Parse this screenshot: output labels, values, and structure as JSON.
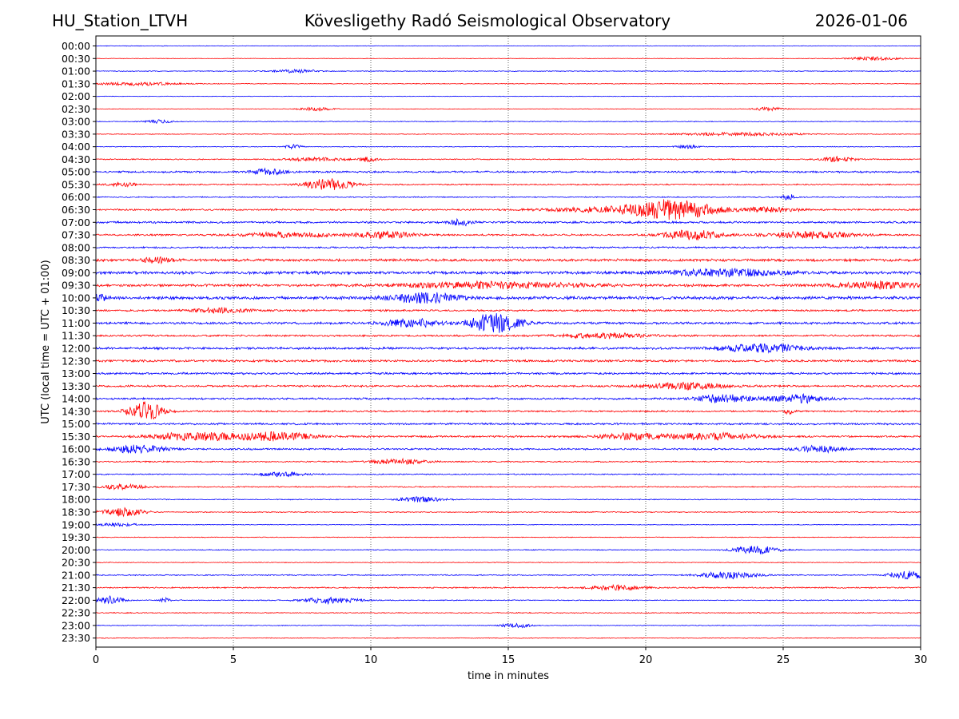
{
  "header": {
    "station": "HU_Station_LTVH",
    "title": "Kövesligethy Radó Seismological Observatory",
    "date": "2026-01-06"
  },
  "chart_data": {
    "type": "line",
    "title": "Kövesligethy Radó Seismological Observatory",
    "xlabel": "time in minutes",
    "ylabel": "UTC (local time = UTC + 01:00)",
    "xlim": [
      0,
      30
    ],
    "xticks": [
      0,
      5,
      10,
      15,
      20,
      25,
      30
    ],
    "grid": "vertical dotted lines at 5-minute ticks",
    "colors": [
      "#0000ff",
      "#ff0000"
    ],
    "rows": [
      "00:00",
      "00:30",
      "01:00",
      "01:30",
      "02:00",
      "02:30",
      "03:00",
      "03:30",
      "04:00",
      "04:30",
      "05:00",
      "05:30",
      "06:00",
      "06:30",
      "07:00",
      "07:30",
      "08:00",
      "08:30",
      "09:00",
      "09:30",
      "10:00",
      "10:30",
      "11:00",
      "11:30",
      "12:00",
      "12:30",
      "13:00",
      "13:30",
      "14:00",
      "14:30",
      "15:00",
      "15:30",
      "16:00",
      "16:30",
      "17:00",
      "17:30",
      "18:00",
      "18:30",
      "19:00",
      "19:30",
      "20:00",
      "20:30",
      "21:00",
      "21:30",
      "22:00",
      "22:30",
      "23:00",
      "23:30"
    ],
    "noise": [
      0.3,
      0.3,
      0.4,
      0.4,
      0.3,
      0.3,
      0.4,
      0.4,
      0.4,
      0.6,
      1.0,
      0.7,
      0.6,
      0.9,
      1.1,
      1.0,
      0.9,
      1.4,
      1.6,
      1.4,
      1.6,
      1.0,
      1.2,
      1.0,
      1.2,
      1.2,
      1.1,
      1.0,
      1.0,
      0.9,
      1.0,
      1.0,
      0.9,
      0.7,
      0.6,
      0.6,
      0.5,
      0.5,
      0.4,
      0.4,
      0.5,
      0.4,
      0.6,
      0.7,
      0.5,
      0.5,
      0.4,
      0.4
    ],
    "events": [
      {
        "row": 1,
        "t": 28.3,
        "a": 2,
        "d": 1.0
      },
      {
        "row": 2,
        "t": 7.3,
        "a": 2,
        "d": 0.8
      },
      {
        "row": 3,
        "t": 1.5,
        "a": 2,
        "d": 1.5
      },
      {
        "row": 5,
        "t": 8.0,
        "a": 2,
        "d": 0.6
      },
      {
        "row": 5,
        "t": 24.5,
        "a": 2,
        "d": 0.6
      },
      {
        "row": 6,
        "t": 2.3,
        "a": 2,
        "d": 0.5
      },
      {
        "row": 7,
        "t": 23.5,
        "a": 2,
        "d": 2.0
      },
      {
        "row": 8,
        "t": 7.2,
        "a": 3,
        "d": 0.3
      },
      {
        "row": 8,
        "t": 21.5,
        "a": 2,
        "d": 0.4
      },
      {
        "row": 9,
        "t": 8.0,
        "a": 2,
        "d": 1.0
      },
      {
        "row": 9,
        "t": 9.9,
        "a": 3,
        "d": 0.3
      },
      {
        "row": 9,
        "t": 27.0,
        "a": 3,
        "d": 0.6
      },
      {
        "row": 10,
        "t": 6.3,
        "a": 4,
        "d": 0.6
      },
      {
        "row": 11,
        "t": 8.5,
        "a": 8,
        "d": 0.8
      },
      {
        "row": 11,
        "t": 1.0,
        "a": 2,
        "d": 0.6
      },
      {
        "row": 12,
        "t": 25.2,
        "a": 4,
        "d": 0.2
      },
      {
        "row": 13,
        "t": 21.0,
        "a": 11,
        "d": 1.5
      },
      {
        "row": 13,
        "t": 19.0,
        "a": 3,
        "d": 2.5
      },
      {
        "row": 13,
        "t": 24.5,
        "a": 3,
        "d": 1.0
      },
      {
        "row": 14,
        "t": 13.3,
        "a": 4,
        "d": 0.4
      },
      {
        "row": 15,
        "t": 10.5,
        "a": 4,
        "d": 1.0
      },
      {
        "row": 15,
        "t": 21.7,
        "a": 6,
        "d": 1.0
      },
      {
        "row": 15,
        "t": 26.0,
        "a": 4,
        "d": 1.5
      },
      {
        "row": 15,
        "t": 7.0,
        "a": 3,
        "d": 1.5
      },
      {
        "row": 17,
        "t": 2.2,
        "a": 3,
        "d": 0.6
      },
      {
        "row": 18,
        "t": 23.0,
        "a": 4,
        "d": 2.0
      },
      {
        "row": 19,
        "t": 14.5,
        "a": 4,
        "d": 3.0
      },
      {
        "row": 19,
        "t": 28.5,
        "a": 4,
        "d": 1.5
      },
      {
        "row": 20,
        "t": 12.0,
        "a": 6,
        "d": 1.2
      },
      {
        "row": 20,
        "t": 0.1,
        "a": 4,
        "d": 0.3
      },
      {
        "row": 21,
        "t": 4.5,
        "a": 3,
        "d": 1.0
      },
      {
        "row": 22,
        "t": 14.5,
        "a": 12,
        "d": 0.9
      },
      {
        "row": 22,
        "t": 11.5,
        "a": 5,
        "d": 1.0
      },
      {
        "row": 23,
        "t": 18.5,
        "a": 3,
        "d": 1.5
      },
      {
        "row": 24,
        "t": 24.3,
        "a": 5,
        "d": 1.5
      },
      {
        "row": 27,
        "t": 21.5,
        "a": 4,
        "d": 1.5
      },
      {
        "row": 28,
        "t": 22.8,
        "a": 5,
        "d": 1.0
      },
      {
        "row": 28,
        "t": 25.5,
        "a": 5,
        "d": 1.0
      },
      {
        "row": 29,
        "t": 1.8,
        "a": 12,
        "d": 0.6
      },
      {
        "row": 29,
        "t": 25.2,
        "a": 3,
        "d": 0.2
      },
      {
        "row": 31,
        "t": 3.5,
        "a": 5,
        "d": 1.5
      },
      {
        "row": 31,
        "t": 6.5,
        "a": 5,
        "d": 1.5
      },
      {
        "row": 31,
        "t": 19.5,
        "a": 4,
        "d": 1.2
      },
      {
        "row": 31,
        "t": 22.5,
        "a": 4,
        "d": 1.5
      },
      {
        "row": 32,
        "t": 1.5,
        "a": 5,
        "d": 1.0
      },
      {
        "row": 32,
        "t": 26.3,
        "a": 4,
        "d": 0.8
      },
      {
        "row": 33,
        "t": 11.0,
        "a": 3,
        "d": 1.0
      },
      {
        "row": 34,
        "t": 6.8,
        "a": 3,
        "d": 0.8
      },
      {
        "row": 35,
        "t": 1.0,
        "a": 3,
        "d": 0.8
      },
      {
        "row": 36,
        "t": 11.8,
        "a": 3,
        "d": 0.8
      },
      {
        "row": 37,
        "t": 1.0,
        "a": 5,
        "d": 0.8
      },
      {
        "row": 38,
        "t": 0.8,
        "a": 2,
        "d": 0.8
      },
      {
        "row": 40,
        "t": 24.0,
        "a": 5,
        "d": 0.8
      },
      {
        "row": 42,
        "t": 23.0,
        "a": 4,
        "d": 1.0
      },
      {
        "row": 42,
        "t": 29.5,
        "a": 5,
        "d": 0.6
      },
      {
        "row": 43,
        "t": 19.0,
        "a": 3,
        "d": 1.0
      },
      {
        "row": 44,
        "t": 0.5,
        "a": 5,
        "d": 0.5
      },
      {
        "row": 44,
        "t": 8.5,
        "a": 4,
        "d": 1.0
      },
      {
        "row": 44,
        "t": 2.5,
        "a": 3,
        "d": 0.2
      },
      {
        "row": 46,
        "t": 15.3,
        "a": 3,
        "d": 0.5
      }
    ]
  }
}
